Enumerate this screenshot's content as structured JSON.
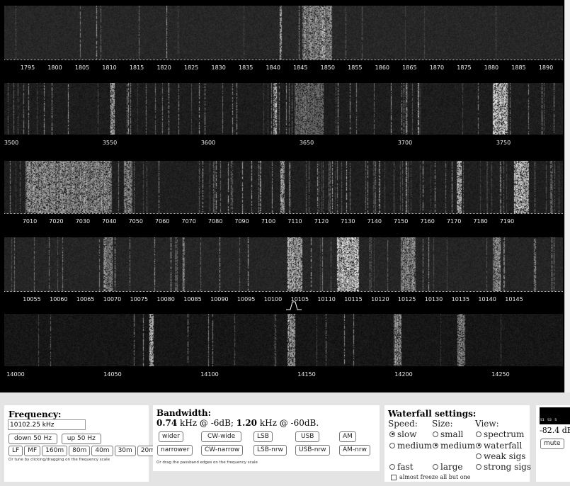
{
  "waterfall": {
    "bands": [
      {
        "ticks": [
          "1795",
          "1800",
          "1805",
          "1810",
          "1815",
          "1820",
          "1825",
          "1830",
          "1835",
          "1840",
          "1845",
          "1850",
          "1855",
          "1860",
          "1865",
          "1870",
          "1875",
          "1880",
          "1885",
          "1890"
        ]
      },
      {
        "ticks": [
          "3500",
          "3550",
          "3600",
          "3650",
          "3700",
          "3750"
        ]
      },
      {
        "ticks": [
          "7010",
          "7020",
          "7030",
          "7040",
          "7050",
          "7060",
          "7070",
          "7080",
          "7090",
          "7100",
          "7110",
          "7120",
          "7130",
          "7140",
          "7150",
          "7160",
          "7170",
          "7180",
          "7190"
        ]
      },
      {
        "ticks": [
          "10055",
          "10060",
          "10065",
          "10070",
          "10075",
          "10080",
          "10085",
          "10090",
          "10095",
          "10100",
          "10105",
          "10110",
          "10115",
          "10120",
          "10125",
          "10130",
          "10135",
          "10140",
          "10145"
        ]
      },
      {
        "ticks": [
          "14000",
          "14050",
          "14100",
          "14150",
          "14200",
          "14250"
        ]
      }
    ]
  },
  "frequency": {
    "title": "Frequency:",
    "value": "10102.25 kHz",
    "down_label": "down 50 Hz",
    "up_label": "up 50 Hz",
    "bands": [
      "LF",
      "MF",
      "160m",
      "80m",
      "40m",
      "30m",
      "20m"
    ],
    "note": "Or tune by clicking/dragging on the frequency scale"
  },
  "bandwidth": {
    "title": "Bandwidth:",
    "value1": "0.74",
    "unit1": " kHz @ -6dB; ",
    "value2": "1.20",
    "unit2": " kHz @ -60dB.",
    "row1": [
      "wider",
      "CW-wide",
      "LSB",
      "USB",
      "AM"
    ],
    "row2": [
      "narrower",
      "CW-narrow",
      "LSB-nrw",
      "USB-nrw",
      "AM-nrw"
    ],
    "note": "Or drag the passband edges on the frequency scale"
  },
  "waterfall_settings": {
    "title": "Waterfall settings:",
    "speed_label": "Speed:",
    "size_label": "Size:",
    "view_label": "View:",
    "speed_slow": "slow",
    "speed_medium": "medium",
    "speed_fast": "fast",
    "size_small": "small",
    "size_medium": "medium",
    "size_large": "large",
    "view_spectrum": "spectrum",
    "view_waterfall": "waterfall",
    "view_weak": "weak sigs",
    "view_strong": "strong sigs",
    "freeze_label": "almost freeze all but one",
    "selected_speed": "slow",
    "selected_size": "medium",
    "selected_view": "waterfall"
  },
  "smeter": {
    "scale": [
      "S1",
      "S3",
      "S"
    ],
    "reading": "-82.4 dB",
    "mute_label": "mute"
  }
}
